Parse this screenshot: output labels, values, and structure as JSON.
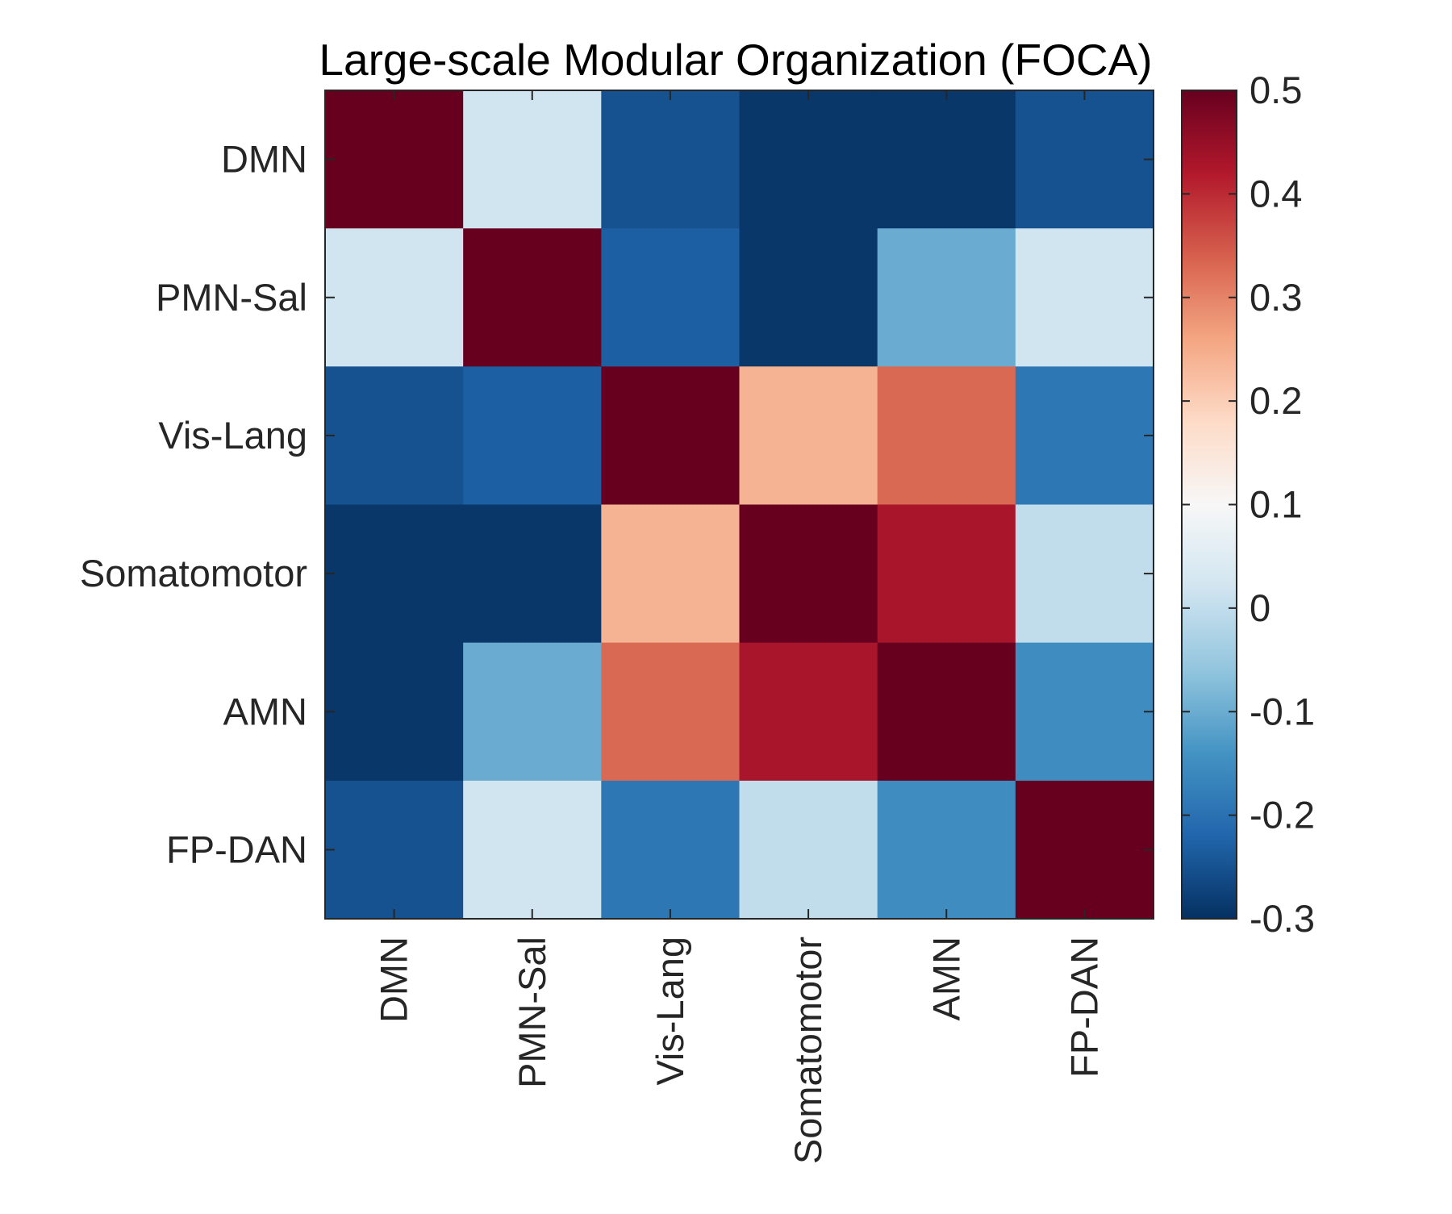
{
  "chart_data": {
    "type": "heatmap",
    "title": "Large-scale Modular Organization (FOCA)",
    "xlabel": "",
    "ylabel": "",
    "categories": [
      "DMN",
      "PMN-Sal",
      "Vis-Lang",
      "Somatomotor",
      "AMN",
      "FP-DAN"
    ],
    "matrix": [
      [
        0.5,
        0.02,
        -0.25,
        -0.29,
        -0.29,
        -0.25
      ],
      [
        0.02,
        0.5,
        -0.23,
        -0.29,
        -0.1,
        0.02
      ],
      [
        -0.25,
        -0.23,
        0.5,
        0.24,
        0.33,
        -0.19
      ],
      [
        -0.29,
        -0.29,
        0.24,
        0.5,
        0.43,
        0.0
      ],
      [
        -0.29,
        -0.1,
        0.33,
        0.43,
        0.5,
        -0.15
      ],
      [
        -0.25,
        0.02,
        -0.19,
        0.0,
        -0.15,
        0.5
      ]
    ],
    "colorbar": {
      "min": -0.3,
      "max": 0.5,
      "ticks": [
        -0.3,
        -0.2,
        -0.1,
        0,
        0.1,
        0.2,
        0.3,
        0.4,
        0.5
      ],
      "tick_labels": [
        "-0.3",
        "-0.2",
        "-0.1",
        "0",
        "0.1",
        "0.2",
        "0.3",
        "0.4",
        "0.5"
      ],
      "colormap": [
        "#053061",
        "#2166ac",
        "#4393c3",
        "#92c5de",
        "#d1e5f0",
        "#f7f7f7",
        "#fddbc7",
        "#f4a582",
        "#d6604d",
        "#b2182b",
        "#67001f"
      ]
    },
    "grid": false
  }
}
